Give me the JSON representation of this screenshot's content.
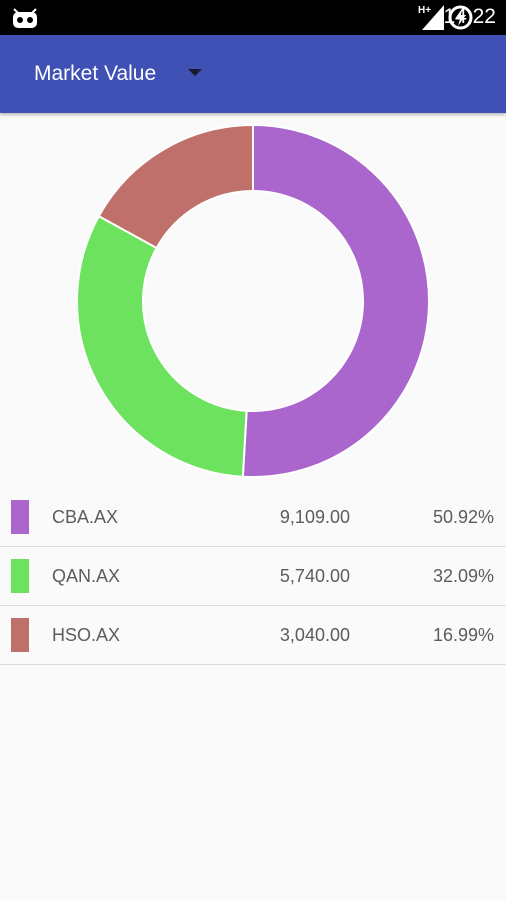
{
  "status_bar": {
    "time": "14:22",
    "network_type": "H+",
    "icons": [
      "android-icon",
      "signal-icon",
      "battery-charging-icon"
    ]
  },
  "app_bar": {
    "spinner_label": "Market Value",
    "color": "#3f51b5"
  },
  "chart_data": {
    "type": "pie",
    "donut": true,
    "categories": [
      "CBA.AX",
      "QAN.AX",
      "HSO.AX"
    ],
    "values": [
      9109.0,
      5740.0,
      3040.0
    ],
    "percentages": [
      50.92,
      32.09,
      16.99
    ],
    "colors": [
      "#aa66cc",
      "#6ce25f",
      "#c0706a"
    ],
    "start_angle_deg": 0,
    "direction": "clockwise"
  },
  "legend": [
    {
      "symbol": "CBA.AX",
      "value": "9,109.00",
      "percent": "50.92%",
      "color": "#aa66cc"
    },
    {
      "symbol": "QAN.AX",
      "value": "5,740.00",
      "percent": "32.09%",
      "color": "#6ce25f"
    },
    {
      "symbol": "HSO.AX",
      "value": "3,040.00",
      "percent": "16.99%",
      "color": "#c0706a"
    }
  ]
}
